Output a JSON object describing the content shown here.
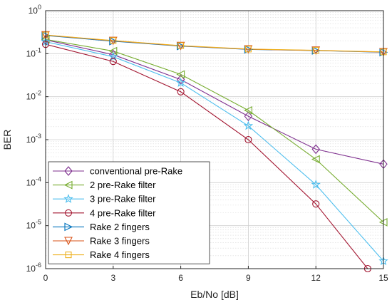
{
  "chart_data": {
    "type": "line",
    "xlabel": "Eb/No [dB]",
    "ylabel": "BER",
    "yscale": "log",
    "xlim": [
      0,
      15
    ],
    "ylim": [
      1e-06,
      1
    ],
    "grid": true,
    "legend_position": "bottom-left",
    "x_ticks": [
      {
        "value": 0,
        "label": "0"
      },
      {
        "value": 3,
        "label": "3"
      },
      {
        "value": 6,
        "label": "6"
      },
      {
        "value": 9,
        "label": "9"
      },
      {
        "value": 12,
        "label": "12"
      },
      {
        "value": 15,
        "label": "15"
      }
    ],
    "y_ticks": [
      {
        "value": 1,
        "base": "10",
        "exp": "0"
      },
      {
        "value": 0.1,
        "base": "10",
        "exp": "-1"
      },
      {
        "value": 0.01,
        "base": "10",
        "exp": "-2"
      },
      {
        "value": 0.001,
        "base": "10",
        "exp": "-3"
      },
      {
        "value": 0.0001,
        "base": "10",
        "exp": "-4"
      },
      {
        "value": 1e-05,
        "base": "10",
        "exp": "-5"
      },
      {
        "value": 1e-06,
        "base": "10",
        "exp": "-6"
      }
    ],
    "x": [
      0,
      3,
      6,
      9,
      12,
      15
    ],
    "series": [
      {
        "name": "conventional pre-Rake",
        "color": "#7e2f8e",
        "marker": "diamond",
        "points": [
          [
            0,
            0.21
          ],
          [
            3,
            0.095
          ],
          [
            6,
            0.025
          ],
          [
            9,
            0.0035
          ],
          [
            12,
            0.0006
          ],
          [
            15,
            0.00027
          ]
        ]
      },
      {
        "name": "2 pre-Rake filter",
        "color": "#77ac30",
        "marker": "triangle-left",
        "points": [
          [
            0,
            0.215
          ],
          [
            3,
            0.115
          ],
          [
            6,
            0.033
          ],
          [
            9,
            0.0048
          ],
          [
            12,
            0.00035
          ],
          [
            15,
            1.2e-05
          ]
        ]
      },
      {
        "name": "3 pre-Rake filter",
        "color": "#4dbeee",
        "marker": "star",
        "points": [
          [
            0,
            0.19
          ],
          [
            3,
            0.085
          ],
          [
            6,
            0.021
          ],
          [
            9,
            0.0021
          ],
          [
            12,
            9e-05
          ],
          [
            15,
            1.5e-06
          ]
        ]
      },
      {
        "name": "4 pre-Rake filter",
        "color": "#a2142f",
        "marker": "circle",
        "points": [
          [
            0,
            0.165
          ],
          [
            3,
            0.066
          ],
          [
            6,
            0.013
          ],
          [
            9,
            0.001
          ],
          [
            12,
            3.2e-05
          ],
          [
            14.3,
            1e-06
          ]
        ]
      },
      {
        "name": "Rake 2 fingers",
        "color": "#0072bd",
        "marker": "triangle-right",
        "points": [
          [
            0,
            0.265
          ],
          [
            3,
            0.195
          ],
          [
            6,
            0.15
          ],
          [
            9,
            0.126
          ],
          [
            12,
            0.118
          ],
          [
            15,
            0.108
          ]
        ]
      },
      {
        "name": "Rake 3 fingers",
        "color": "#d95319",
        "marker": "triangle-down",
        "points": [
          [
            0,
            0.27
          ],
          [
            3,
            0.2
          ],
          [
            6,
            0.152
          ],
          [
            9,
            0.127
          ],
          [
            12,
            0.119
          ],
          [
            15,
            0.109
          ]
        ]
      },
      {
        "name": "Rake 4 fingers",
        "color": "#edb120",
        "marker": "square",
        "points": [
          [
            0,
            0.272
          ],
          [
            3,
            0.202
          ],
          [
            6,
            0.154
          ],
          [
            9,
            0.128
          ],
          [
            12,
            0.12
          ],
          [
            15,
            0.11
          ]
        ]
      }
    ]
  }
}
